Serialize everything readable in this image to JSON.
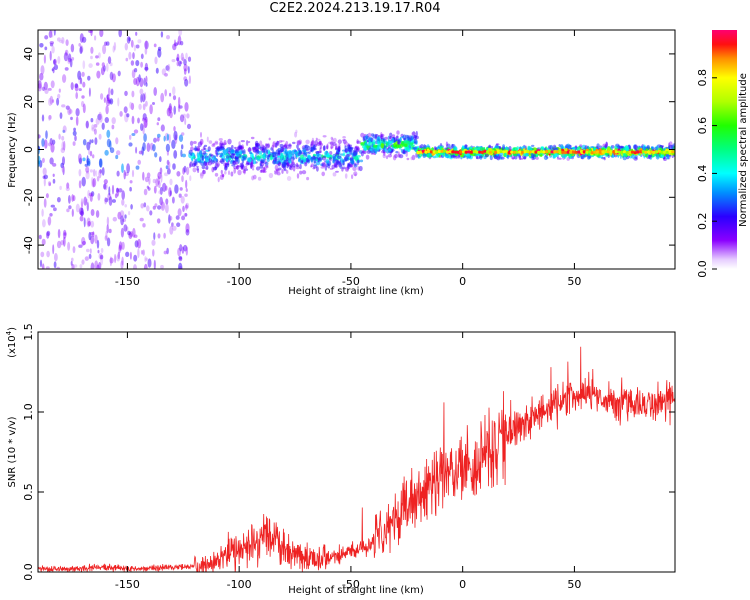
{
  "title": "C2E2.2024.213.19.17.R04",
  "colors": {
    "snr_line": "#ee2222",
    "frame": "#000000"
  },
  "chart_data": [
    {
      "type": "heatmap",
      "xlabel": "Height of straight line (km)",
      "ylabel": "Frequency (Hz)",
      "xlim": [
        -190,
        95
      ],
      "ylim": [
        -50,
        50
      ],
      "xticks": [
        -150,
        -100,
        -50,
        0,
        50
      ],
      "yticks": [
        -40,
        -20,
        0,
        20,
        40
      ],
      "colorbar": {
        "label": "Normalized spectral amplitude",
        "range": [
          0.0,
          1.0
        ],
        "ticks": [
          "0.0",
          "0.2",
          "0.4",
          "0.6",
          "0.8"
        ],
        "colormap": "rainbow"
      },
      "regions": [
        {
          "x": [
            -190,
            -122
          ],
          "freq_spread": 50,
          "amplitude": 0.1
        },
        {
          "x": [
            -122,
            -45
          ],
          "center_freq": -3,
          "freq_spread": 12,
          "amplitude": 0.4
        },
        {
          "x": [
            -45,
            -20
          ],
          "center_freq": 2,
          "freq_spread": 8,
          "amplitude": 0.55
        },
        {
          "x": [
            -20,
            95
          ],
          "center_freq": -1,
          "freq_spread": 4,
          "amplitude": 0.9
        }
      ]
    },
    {
      "type": "line",
      "xlabel": "Height of straight line (km)",
      "ylabel": "SNR (10 * v/v)",
      "y_multiplier": "(x10",
      "y_multiplier_exp": "4",
      "xlim": [
        -190,
        95
      ],
      "ylim": [
        0.0,
        1.5
      ],
      "xticks": [
        -150,
        -100,
        -50,
        0,
        50
      ],
      "yticks": [
        "0.0",
        "0.5",
        "1.0",
        "1.5"
      ],
      "series": [
        {
          "x": [
            -190,
            -175,
            -160,
            -145,
            -130,
            -120,
            -112,
            -105,
            -100,
            -95,
            -90,
            -87,
            -84,
            -80,
            -75,
            -70,
            -65,
            -60,
            -55,
            -50,
            -45,
            -40,
            -35,
            -30,
            -25,
            -20,
            -15,
            -10,
            -5,
            0,
            5,
            10,
            15,
            20,
            25,
            30,
            35,
            40,
            45,
            50,
            55,
            60,
            65,
            70,
            75,
            80,
            85,
            90,
            95
          ],
          "y": [
            0.02,
            0.02,
            0.03,
            0.02,
            0.03,
            0.03,
            0.06,
            0.12,
            0.15,
            0.17,
            0.22,
            0.26,
            0.22,
            0.15,
            0.11,
            0.09,
            0.08,
            0.08,
            0.1,
            0.12,
            0.14,
            0.18,
            0.26,
            0.34,
            0.42,
            0.5,
            0.55,
            0.58,
            0.6,
            0.62,
            0.66,
            0.72,
            0.8,
            0.86,
            0.9,
            0.95,
            1.0,
            1.04,
            1.08,
            1.1,
            1.12,
            1.1,
            1.08,
            1.07,
            1.06,
            1.05,
            1.05,
            1.06,
            1.07
          ]
        }
      ]
    }
  ]
}
